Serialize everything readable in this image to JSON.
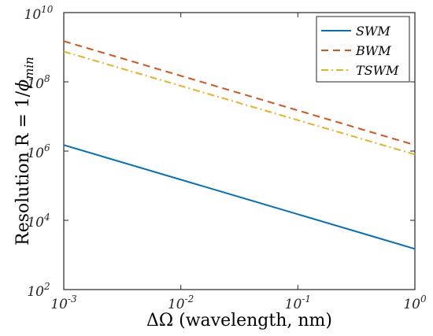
{
  "chart_data": {
    "type": "line",
    "xscale": "log",
    "yscale": "log",
    "xlim": [
      0.001,
      1
    ],
    "ylim": [
      100,
      10000000000
    ],
    "xticks": [
      {
        "value": 0.001,
        "base": "10",
        "exp": "-3"
      },
      {
        "value": 0.01,
        "base": "10",
        "exp": "-2"
      },
      {
        "value": 0.1,
        "base": "10",
        "exp": "-1"
      },
      {
        "value": 1,
        "base": "10",
        "exp": "0"
      }
    ],
    "yticks": [
      {
        "value": 100,
        "base": "10",
        "exp": "2"
      },
      {
        "value": 10000,
        "base": "10",
        "exp": "4"
      },
      {
        "value": 1000000,
        "base": "10",
        "exp": "6"
      },
      {
        "value": 100000000,
        "base": "10",
        "exp": "8"
      },
      {
        "value": 10000000000,
        "base": "10",
        "exp": "10"
      }
    ],
    "xlabel": "ΔΩ (wavelength, nm)",
    "ylabel": {
      "main": "Resolution R = 1/",
      "phi": "ϕ",
      "sub": "min"
    },
    "grid": false,
    "legend_position": "top-right",
    "series": [
      {
        "name": "SWM",
        "color": "#0072BD",
        "dash": "solid",
        "x": [
          0.001,
          1
        ],
        "y": [
          1500000,
          1500
        ]
      },
      {
        "name": "BWM",
        "color": "#D95319",
        "dash": "dashed",
        "x": [
          0.001,
          1
        ],
        "y": [
          1500000000,
          1500000
        ]
      },
      {
        "name": "TSWM",
        "color": "#EDB120",
        "dash": "dashdot",
        "x": [
          0.001,
          1
        ],
        "y": [
          750000000,
          800000
        ]
      }
    ]
  }
}
